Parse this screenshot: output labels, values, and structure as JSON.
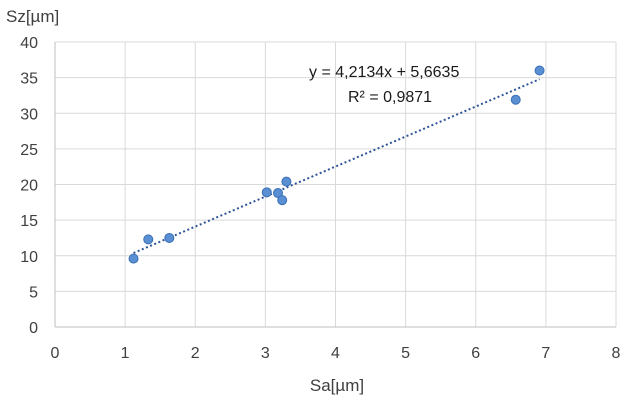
{
  "chart_data": {
    "type": "scatter",
    "ylabel": "Sz[µm]",
    "xlabel": "Sa[µm]",
    "xlim": [
      0,
      8
    ],
    "ylim": [
      0,
      40
    ],
    "xticks": [
      "0",
      "1",
      "2",
      "3",
      "4",
      "5",
      "6",
      "7",
      "8"
    ],
    "yticks": [
      "0",
      "5",
      "10",
      "15",
      "20",
      "25",
      "30",
      "35",
      "40"
    ],
    "grid": true,
    "legend": "none",
    "series": [
      {
        "color": "#5b8fd3",
        "points": [
          {
            "x": 1.12,
            "y": 9.6
          },
          {
            "x": 1.33,
            "y": 12.3
          },
          {
            "x": 1.63,
            "y": 12.5
          },
          {
            "x": 3.02,
            "y": 18.9
          },
          {
            "x": 3.18,
            "y": 18.8
          },
          {
            "x": 3.24,
            "y": 17.8
          },
          {
            "x": 3.3,
            "y": 20.4
          },
          {
            "x": 6.57,
            "y": 31.9
          },
          {
            "x": 6.91,
            "y": 36.0
          }
        ]
      }
    ],
    "trendline": {
      "type": "linear",
      "slope": 4.2134,
      "intercept": 5.6635,
      "x_range": [
        1.12,
        6.91
      ],
      "color": "#2f5597",
      "style": "dotted",
      "equation": "y = 4,2134x + 5,6635",
      "r_squared": "R² = 0,9871"
    }
  }
}
